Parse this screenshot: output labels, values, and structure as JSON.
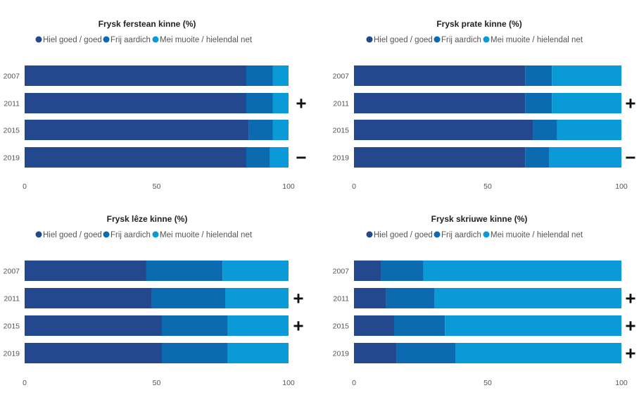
{
  "legend_labels": [
    "Hiel goed / goed",
    "Frij aardich",
    "Mei muoite / hielendal net"
  ],
  "colors": [
    "#23488E",
    "#0B6AB0",
    "#0A9AD8"
  ],
  "chart_data": [
    {
      "type": "bar",
      "orientation": "horizontal-stacked",
      "title": "Frysk ferstean kinne (%)",
      "categories": [
        "2007",
        "2011",
        "2015",
        "2019"
      ],
      "series": [
        {
          "name": "Hiel goed / goed",
          "values": [
            84,
            84,
            85,
            84
          ]
        },
        {
          "name": "Frij aardich",
          "values": [
            10,
            10,
            9,
            9
          ]
        },
        {
          "name": "Mei muoite / hielendal net",
          "values": [
            6,
            6,
            6,
            7
          ]
        }
      ],
      "xlim": [
        0,
        100
      ],
      "xticks": [
        "0",
        "50",
        "100"
      ],
      "marks": [
        "",
        "+",
        "",
        "−"
      ]
    },
    {
      "type": "bar",
      "orientation": "horizontal-stacked",
      "title": "Frysk prate kinne (%)",
      "categories": [
        "2007",
        "2011",
        "2015",
        "2019"
      ],
      "series": [
        {
          "name": "Hiel goed / goed",
          "values": [
            64,
            64,
            67,
            64
          ]
        },
        {
          "name": "Frij aardich",
          "values": [
            10,
            10,
            9,
            9
          ]
        },
        {
          "name": "Mei muoite / hielendal net",
          "values": [
            26,
            26,
            24,
            27
          ]
        }
      ],
      "xlim": [
        0,
        100
      ],
      "xticks": [
        "0",
        "50",
        "100"
      ],
      "marks": [
        "",
        "+",
        "",
        "−"
      ]
    },
    {
      "type": "bar",
      "orientation": "horizontal-stacked",
      "title": "Frysk lêze kinne (%)",
      "categories": [
        "2007",
        "2011",
        "2015",
        "2019"
      ],
      "series": [
        {
          "name": "Hiel goed / goed",
          "values": [
            46,
            48,
            52,
            52
          ]
        },
        {
          "name": "Frij aardich",
          "values": [
            29,
            28,
            25,
            25
          ]
        },
        {
          "name": "Mei muoite / hielendal net",
          "values": [
            25,
            24,
            23,
            23
          ]
        }
      ],
      "xlim": [
        0,
        100
      ],
      "xticks": [
        "0",
        "50",
        "100"
      ],
      "marks": [
        "",
        "+",
        "+",
        ""
      ]
    },
    {
      "type": "bar",
      "orientation": "horizontal-stacked",
      "title": "Frysk skriuwe kinne (%)",
      "categories": [
        "2007",
        "2011",
        "2015",
        "2019"
      ],
      "series": [
        {
          "name": "Hiel goed / goed",
          "values": [
            10,
            12,
            15,
            16
          ]
        },
        {
          "name": "Frij aardich",
          "values": [
            16,
            18,
            19,
            22
          ]
        },
        {
          "name": "Mei muoite / hielendal net",
          "values": [
            74,
            70,
            66,
            62
          ]
        }
      ],
      "xlim": [
        0,
        100
      ],
      "xticks": [
        "0",
        "50",
        "100"
      ],
      "marks": [
        "",
        "+",
        "+",
        "+"
      ]
    }
  ]
}
